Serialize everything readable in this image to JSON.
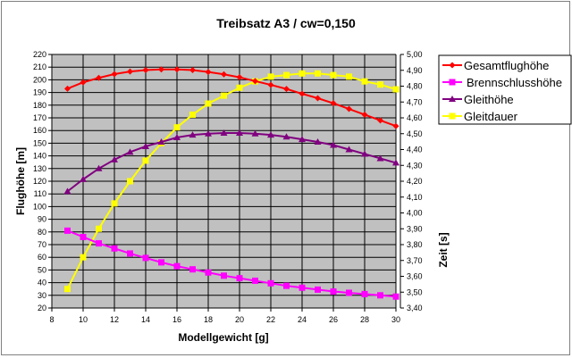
{
  "chart_data": {
    "type": "line",
    "title": "Treibsatz A3 / cw=0,150",
    "xlabel": "Modellgewicht [g]",
    "ylabel": "Flughöhe [m]",
    "y2label": "Zeit [s]",
    "xlim": [
      8,
      30
    ],
    "ylim": [
      20,
      220
    ],
    "y2lim": [
      3.4,
      5.0
    ],
    "grid": true,
    "legend_position": "right",
    "x_ticks": [
      "8",
      "10",
      "12",
      "14",
      "16",
      "18",
      "20",
      "22",
      "24",
      "26",
      "28",
      "30"
    ],
    "y_ticks": [
      "20",
      "30",
      "40",
      "50",
      "60",
      "70",
      "80",
      "90",
      "100",
      "110",
      "120",
      "130",
      "140",
      "150",
      "160",
      "170",
      "180",
      "190",
      "200",
      "210",
      "220"
    ],
    "y2_ticks": [
      "3,40",
      "3,50",
      "3,60",
      "3,70",
      "3,80",
      "3,90",
      "4,00",
      "4,10",
      "4,20",
      "4,30",
      "4,40",
      "4,50",
      "4,60",
      "4,70",
      "4,80",
      "4,90",
      "5,00"
    ],
    "x": [
      9,
      10,
      11,
      12,
      13,
      14,
      15,
      16,
      17,
      18,
      19,
      20,
      21,
      22,
      23,
      24,
      25,
      26,
      27,
      28,
      29,
      30
    ],
    "series": [
      {
        "name": "Gesamtflughöhe",
        "axis": "left",
        "color": "#ff0000",
        "marker": "diamond",
        "values": [
          193,
          198,
          201.5,
          204.5,
          206.5,
          207.7,
          208.2,
          208.2,
          207.7,
          206.2,
          204.3,
          202,
          199,
          196,
          192.8,
          189,
          185.5,
          181.5,
          177,
          172.5,
          168,
          163.5
        ]
      },
      {
        "name": "Brennschlusshöhe",
        "axis": "left",
        "color": "#ff00ff",
        "marker": "square",
        "values": [
          81,
          76,
          71,
          67,
          63,
          59.5,
          56,
          53,
          50.5,
          48,
          45.5,
          43.5,
          41.5,
          39.5,
          37.5,
          36,
          34.5,
          33,
          32,
          31,
          30,
          29
        ]
      },
      {
        "name": "Gleithöhe",
        "axis": "left",
        "color": "#800080",
        "marker": "triangle",
        "values": [
          112,
          121.5,
          130,
          137,
          143,
          147.5,
          151,
          154.5,
          156.5,
          157.5,
          158,
          158,
          157.5,
          156.5,
          155,
          153,
          151,
          148.5,
          145,
          141.5,
          138,
          134.5
        ]
      },
      {
        "name": "Gleitdauer",
        "axis": "right",
        "color": "#ffff00",
        "marker": "square",
        "values": [
          3.52,
          3.72,
          3.9,
          4.06,
          4.2,
          4.33,
          4.44,
          4.54,
          4.62,
          4.69,
          4.74,
          4.79,
          4.83,
          4.86,
          4.87,
          4.88,
          4.88,
          4.87,
          4.86,
          4.83,
          4.81,
          4.78
        ]
      }
    ]
  }
}
